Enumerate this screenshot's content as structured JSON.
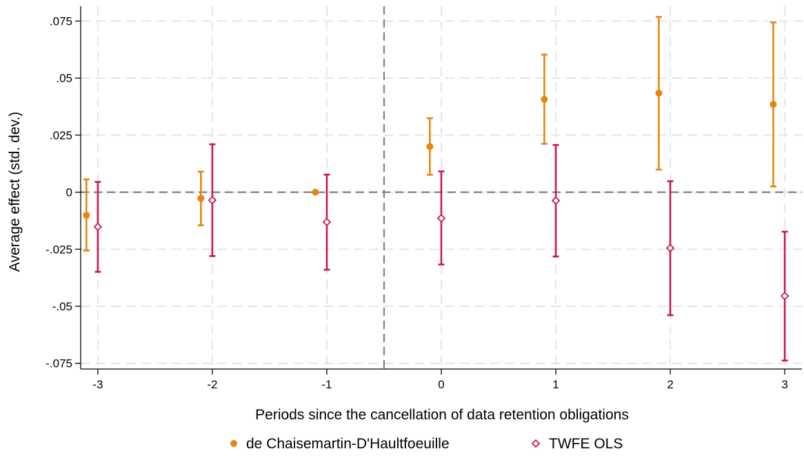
{
  "chart_data": {
    "type": "scatter",
    "title": "",
    "xlabel": "Periods since the cancellation of data retention obligations",
    "ylabel": "Average effect (std. dev.)",
    "x_ticks": [
      -3,
      -2,
      -1,
      0,
      1,
      2,
      3
    ],
    "x_tick_labels": [
      "-3",
      "-2",
      "-1",
      "0",
      "1",
      "2",
      "3"
    ],
    "y_ticks": [
      -0.075,
      -0.05,
      -0.025,
      0,
      0.025,
      0.05,
      0.075
    ],
    "y_tick_labels": [
      "-.075",
      "-.05",
      "-.025",
      "0",
      ".025",
      ".05",
      ".075"
    ],
    "xlim": [
      -3.15,
      3.15
    ],
    "ylim": [
      -0.0775,
      0.0815
    ],
    "grid": true,
    "reference_lines": {
      "horizontal_y": 0,
      "vertical_x": -0.5
    },
    "legend_position": "bottom",
    "series": [
      {
        "name": "de Chaisemartin-D'Haultfoeuille",
        "color": "#E8850F",
        "marker": "filled-circle",
        "points": [
          {
            "x": -3,
            "y": -0.0101,
            "lo": -0.0256,
            "hi": 0.0056
          },
          {
            "x": -2,
            "y": -0.0027,
            "lo": -0.0145,
            "hi": 0.009
          },
          {
            "x": -1,
            "y": 0.0,
            "lo": 0.0,
            "hi": 0.0
          },
          {
            "x": 0,
            "y": 0.02,
            "lo": 0.0076,
            "hi": 0.0324
          },
          {
            "x": 1,
            "y": 0.0407,
            "lo": 0.0212,
            "hi": 0.0603
          },
          {
            "x": 2,
            "y": 0.0434,
            "lo": 0.0099,
            "hi": 0.0768
          },
          {
            "x": 3,
            "y": 0.0385,
            "lo": 0.0025,
            "hi": 0.0744
          }
        ]
      },
      {
        "name": "TWFE OLS",
        "color": "#C8174E",
        "marker": "hollow-diamond",
        "points": [
          {
            "x": -3,
            "y": -0.0152,
            "lo": -0.0349,
            "hi": 0.0045
          },
          {
            "x": -2,
            "y": -0.0035,
            "lo": -0.028,
            "hi": 0.021
          },
          {
            "x": -1,
            "y": -0.0131,
            "lo": -0.034,
            "hi": 0.0077
          },
          {
            "x": 0,
            "y": -0.0114,
            "lo": -0.0317,
            "hi": 0.0091
          },
          {
            "x": 1,
            "y": -0.0037,
            "lo": -0.0282,
            "hi": 0.0207
          },
          {
            "x": 2,
            "y": -0.0245,
            "lo": -0.0539,
            "hi": 0.0048
          },
          {
            "x": 3,
            "y": -0.0455,
            "lo": -0.0738,
            "hi": -0.0173
          }
        ]
      }
    ]
  }
}
